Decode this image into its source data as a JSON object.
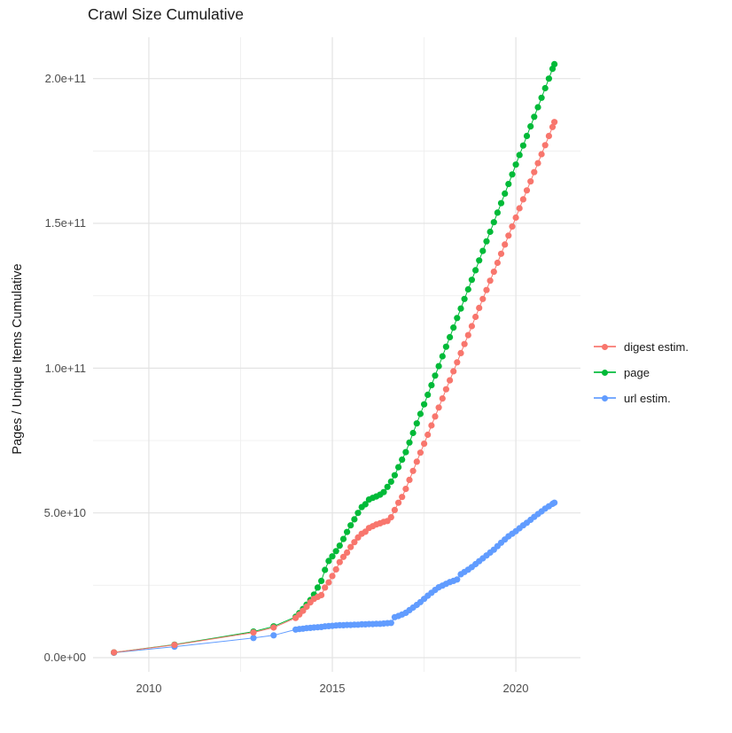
{
  "title": "Crawl Size Cumulative",
  "axes": {
    "y_label": "Pages / Unique Items Cumulative",
    "y_ticks": [
      "0.0e+00",
      "5.0e+10",
      "1.0e+11",
      "1.5e+11",
      "2.0e+11"
    ],
    "x_ticks": [
      "2010",
      "2015",
      "2020"
    ]
  },
  "legend": {
    "items": [
      {
        "label": "digest estim.",
        "color": "#F8766D"
      },
      {
        "label": "page",
        "color": "#00BA38"
      },
      {
        "label": "url estim.",
        "color": "#619CFF"
      }
    ]
  },
  "chart_data": {
    "type": "scatter",
    "title": "Crawl Size Cumulative",
    "xlabel": "",
    "ylabel": "Pages / Unique Items Cumulative",
    "grid": true,
    "legend_position": "right",
    "x_domain": [
      2008.48,
      2021.76
    ],
    "y_domain_billions": [
      -4.9,
      214.3
    ],
    "x_major_ticks": [
      2010,
      2015,
      2020
    ],
    "x_minor_ticks": [
      2012.5,
      2017.5
    ],
    "y_major_ticks_billions": [
      0,
      50,
      100,
      150,
      200
    ],
    "y_minor_ticks_billions": [
      25,
      75,
      125,
      175
    ],
    "y_multiplier": 1000000000.0,
    "x": [
      2009.05,
      2010.7,
      2012.85,
      2013.4,
      2014,
      2014.1,
      2014.2,
      2014.3,
      2014.4,
      2014.5,
      2014.6,
      2014.7,
      2014.8,
      2014.9,
      2015,
      2015.1,
      2015.2,
      2015.3,
      2015.4,
      2015.5,
      2015.6,
      2015.7,
      2015.8,
      2015.9,
      2016,
      2016.1,
      2016.2,
      2016.3,
      2016.4,
      2016.5,
      2016.6,
      2016.7,
      2016.8,
      2016.9,
      2017,
      2017.1,
      2017.2,
      2017.3,
      2017.4,
      2017.5,
      2017.6,
      2017.7,
      2017.8,
      2017.9,
      2018,
      2018.1,
      2018.2,
      2018.3,
      2018.4,
      2018.5,
      2018.6,
      2018.7,
      2018.8,
      2018.9,
      2019,
      2019.1,
      2019.2,
      2019.3,
      2019.4,
      2019.5,
      2019.6,
      2019.7,
      2019.8,
      2019.9,
      2020,
      2020.1,
      2020.2,
      2020.3,
      2020.4,
      2020.5,
      2020.6,
      2020.7,
      2020.8,
      2020.9,
      2021,
      2021.05
    ],
    "series": [
      {
        "name": "digest estim.",
        "color": "#F8766D",
        "values_billions": [
          1.8,
          4.4,
          8.7,
          10.4,
          13.7,
          14.9,
          16.2,
          17.6,
          19.1,
          20.3,
          21,
          21.6,
          24.2,
          26,
          28.2,
          30.5,
          33,
          34.8,
          36.3,
          38.2,
          39.9,
          41.5,
          42.8,
          43.5,
          44.8,
          45.4,
          46,
          46.4,
          46.9,
          47.2,
          48.5,
          51,
          53.5,
          55.5,
          58.3,
          61.4,
          64.5,
          67.7,
          70.8,
          73.9,
          77,
          80.2,
          83.3,
          86.4,
          89.5,
          92.7,
          95.8,
          98.9,
          102,
          105.2,
          108.3,
          111.4,
          114.5,
          117.7,
          120.8,
          123.9,
          127,
          130.2,
          133.3,
          136.4,
          139.5,
          142.7,
          145.8,
          148.9,
          152,
          155.2,
          158.3,
          161.4,
          164.5,
          167.7,
          170.8,
          173.9,
          177,
          180.2,
          183.3,
          185
        ]
      },
      {
        "name": "page",
        "color": "#00BA38",
        "values_billions": [
          1.8,
          4.5,
          9,
          10.8,
          14.1,
          15.4,
          16.8,
          18.3,
          19.9,
          21.8,
          24.2,
          26.5,
          30.3,
          33.4,
          35,
          36.8,
          38.7,
          41,
          43.4,
          45.7,
          47.8,
          50,
          52,
          53,
          54.6,
          55.2,
          55.7,
          56.3,
          57.2,
          59,
          60.8,
          63,
          65.8,
          68.4,
          71,
          74.3,
          77.6,
          80.9,
          84.2,
          87.5,
          90.8,
          94.1,
          97.4,
          100.7,
          104.1,
          107.4,
          110.7,
          114,
          117.3,
          120.6,
          123.9,
          127.2,
          130.5,
          133.8,
          137.2,
          140.5,
          143.8,
          147.1,
          150.4,
          153.7,
          157,
          160.3,
          163.6,
          166.9,
          170.3,
          173.6,
          176.9,
          180.2,
          183.5,
          186.8,
          190.1,
          193.4,
          196.7,
          200,
          203.4,
          205
        ]
      },
      {
        "name": "url estim.",
        "color": "#619CFF",
        "values_billions": [
          1.7,
          3.8,
          6.8,
          7.7,
          9.7,
          9.9,
          10,
          10.2,
          10.3,
          10.4,
          10.5,
          10.6,
          10.8,
          10.9,
          11,
          11.1,
          11.2,
          11.2,
          11.3,
          11.3,
          11.4,
          11.4,
          11.5,
          11.5,
          11.6,
          11.6,
          11.7,
          11.7,
          11.8,
          11.9,
          12,
          14,
          14.4,
          14.9,
          15.5,
          16.4,
          17.3,
          18.2,
          19.2,
          20.3,
          21.4,
          22.4,
          23.4,
          24.3,
          24.9,
          25.5,
          26.1,
          26.5,
          27,
          28.8,
          29.6,
          30.4,
          31.3,
          32.3,
          33.3,
          34.3,
          35.3,
          36.3,
          37.3,
          38.5,
          39.7,
          40.8,
          41.9,
          42.8,
          43.7,
          44.7,
          45.7,
          46.6,
          47.6,
          48.6,
          49.6,
          50.5,
          51.5,
          52.3,
          53.1,
          53.5
        ]
      }
    ]
  },
  "style": {
    "grid_major_color": "#e3e3e3",
    "grid_minor_color": "#efefef",
    "background": "#ffffff"
  }
}
